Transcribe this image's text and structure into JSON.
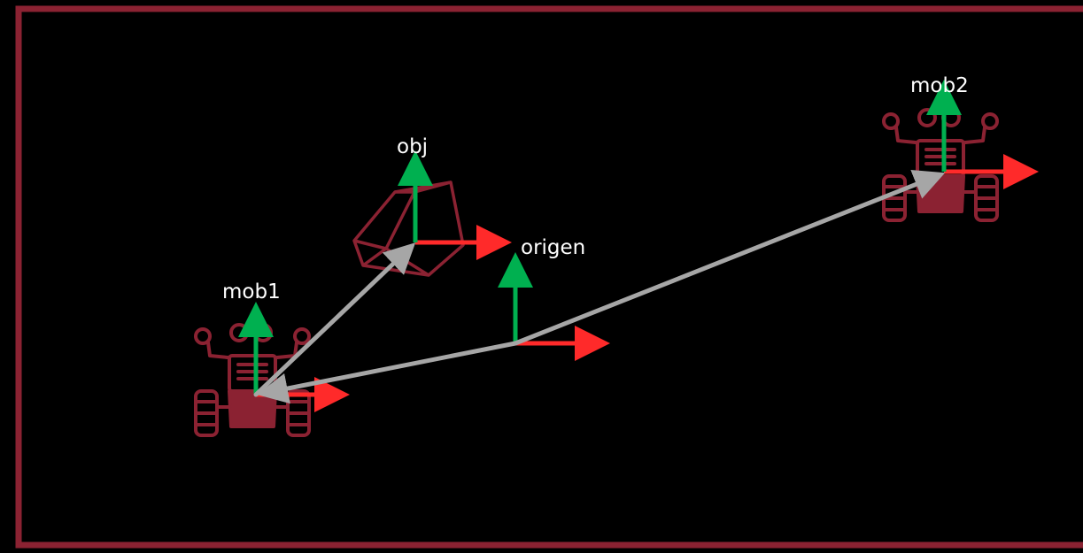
{
  "colors": {
    "background": "#000000",
    "border": "#8b2232",
    "robot": "#8b2232",
    "x_axis": "#ff2a2a",
    "y_axis": "#00b050",
    "vector": "#a6a6a6",
    "label": "#ffffff"
  },
  "frames": {
    "origen": {
      "label": "origen"
    },
    "obj": {
      "label": "obj"
    },
    "mob1": {
      "label": "mob1"
    },
    "mob2": {
      "label": "mob2"
    }
  },
  "icons": {
    "robot": "robot-icon",
    "object": "polyhedron-icon"
  }
}
